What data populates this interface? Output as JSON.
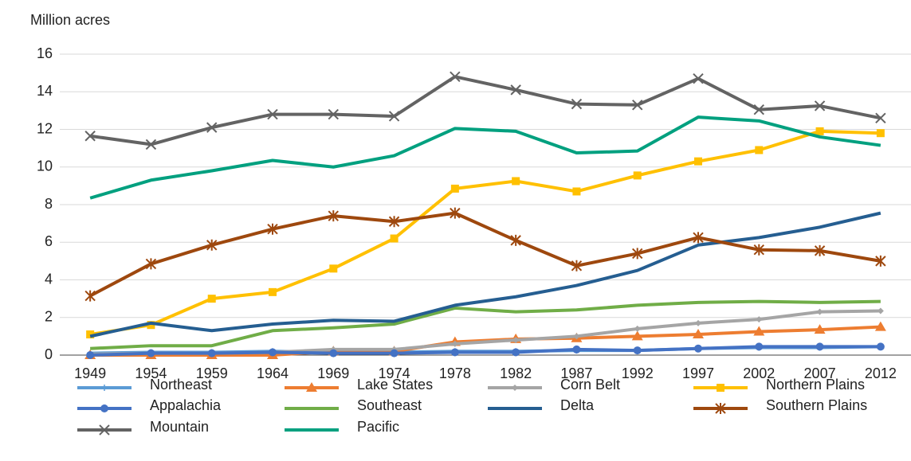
{
  "chart_data": {
    "type": "line",
    "y_axis_label": "Million acres",
    "categories": [
      "1949",
      "1954",
      "1959",
      "1964",
      "1969",
      "1974",
      "1978",
      "1982",
      "1987",
      "1992",
      "1997",
      "2002",
      "2007",
      "2012"
    ],
    "ylim": [
      0,
      16
    ],
    "yticks": [
      0,
      2,
      4,
      6,
      8,
      10,
      12,
      14,
      16
    ],
    "grid": true,
    "series": [
      {
        "name": "Northeast",
        "color": "#5b9bd5",
        "marker": "plus",
        "values": [
          0.1,
          0.15,
          0.15,
          0.2,
          0.15,
          0.15,
          0.2,
          0.2,
          0.25,
          0.25,
          0.35,
          0.4,
          0.4,
          0.45
        ]
      },
      {
        "name": "Lake States",
        "color": "#ed7d31",
        "marker": "triangle",
        "values": [
          0,
          0,
          0,
          0,
          0.2,
          0.2,
          0.7,
          0.85,
          0.9,
          1.0,
          1.1,
          1.25,
          1.35,
          1.5
        ]
      },
      {
        "name": "Corn Belt",
        "color": "#a5a5a5",
        "marker": "diamond",
        "values": [
          0.05,
          0.1,
          0.1,
          0.15,
          0.3,
          0.3,
          0.6,
          0.8,
          1.0,
          1.4,
          1.7,
          1.9,
          2.3,
          2.35
        ]
      },
      {
        "name": "Northern Plains",
        "color": "#ffc000",
        "marker": "square",
        "values": [
          1.1,
          1.6,
          3.0,
          3.35,
          4.6,
          6.2,
          8.85,
          9.25,
          8.7,
          9.55,
          10.3,
          10.9,
          11.9,
          11.8
        ]
      },
      {
        "name": "Appalachia",
        "color": "#4472c4",
        "marker": "circle",
        "values": [
          0,
          0.1,
          0.1,
          0.15,
          0.1,
          0.1,
          0.15,
          0.15,
          0.3,
          0.25,
          0.35,
          0.45,
          0.45,
          0.45
        ]
      },
      {
        "name": "Southeast",
        "color": "#70ad47",
        "values": [
          0.35,
          0.5,
          0.5,
          1.3,
          1.45,
          1.65,
          2.5,
          2.3,
          2.4,
          2.65,
          2.8,
          2.85,
          2.8,
          2.85
        ]
      },
      {
        "name": "Delta",
        "color": "#255e91",
        "values": [
          1.0,
          1.7,
          1.3,
          1.65,
          1.85,
          1.8,
          2.65,
          3.1,
          3.7,
          4.5,
          5.85,
          6.25,
          6.8,
          7.55
        ]
      },
      {
        "name": "Southern Plains",
        "color": "#9e480e",
        "marker": "asterisk",
        "values": [
          3.15,
          4.85,
          5.85,
          6.7,
          7.4,
          7.1,
          7.55,
          6.1,
          4.75,
          5.4,
          6.25,
          5.6,
          5.55,
          5.0
        ]
      },
      {
        "name": "Mountain",
        "color": "#636363",
        "marker": "x",
        "values": [
          11.65,
          11.2,
          12.1,
          12.8,
          12.8,
          12.7,
          14.8,
          14.1,
          13.35,
          13.3,
          14.7,
          13.05,
          13.25,
          12.6
        ]
      },
      {
        "name": "Pacific",
        "color": "#00a07f",
        "values": [
          8.35,
          9.3,
          9.8,
          10.35,
          10.0,
          10.6,
          12.05,
          11.9,
          10.75,
          10.85,
          12.65,
          12.45,
          11.6,
          11.15
        ]
      }
    ]
  }
}
